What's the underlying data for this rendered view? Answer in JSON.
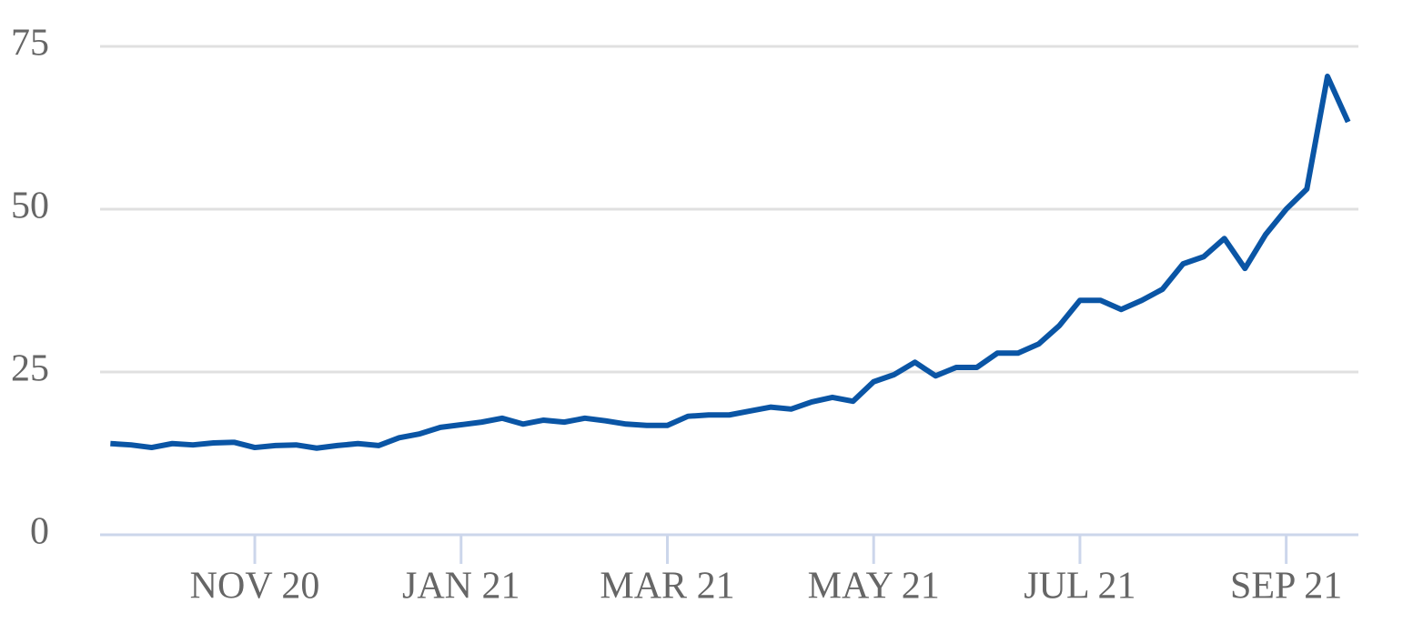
{
  "chart_data": {
    "type": "line",
    "categories": [
      null,
      null,
      null,
      null,
      null,
      null,
      null,
      "NOV 20",
      null,
      null,
      null,
      null,
      null,
      null,
      null,
      null,
      null,
      "JAN 21",
      null,
      null,
      null,
      null,
      null,
      null,
      null,
      null,
      null,
      "MAR 21",
      null,
      null,
      null,
      null,
      null,
      null,
      null,
      null,
      null,
      "MAY 21",
      null,
      null,
      null,
      null,
      null,
      null,
      null,
      null,
      null,
      "JUL 21",
      null,
      null,
      null,
      null,
      null,
      null,
      null,
      null,
      null,
      "SEP 21",
      null,
      null,
      null
    ],
    "values": [
      14.0,
      13.8,
      13.4,
      14.0,
      13.8,
      14.1,
      14.2,
      13.4,
      13.7,
      13.8,
      13.3,
      13.7,
      14.0,
      13.7,
      14.9,
      15.5,
      16.5,
      16.9,
      17.3,
      17.9,
      17.0,
      17.6,
      17.3,
      17.9,
      17.5,
      17.0,
      16.8,
      16.8,
      18.2,
      18.4,
      18.4,
      19.0,
      19.6,
      19.3,
      20.4,
      21.1,
      20.5,
      23.5,
      24.6,
      26.5,
      24.4,
      25.7,
      25.7,
      27.9,
      27.9,
      29.3,
      32.1,
      36.0,
      36.0,
      34.6,
      36.0,
      37.7,
      41.6,
      42.7,
      45.5,
      40.9,
      46.1,
      50.0,
      53.1,
      70.4,
      63.4
    ],
    "color": "#0a55a5",
    "ylim": [
      0,
      75
    ],
    "yticks": [
      0,
      25,
      50,
      75
    ],
    "grid": true
  }
}
